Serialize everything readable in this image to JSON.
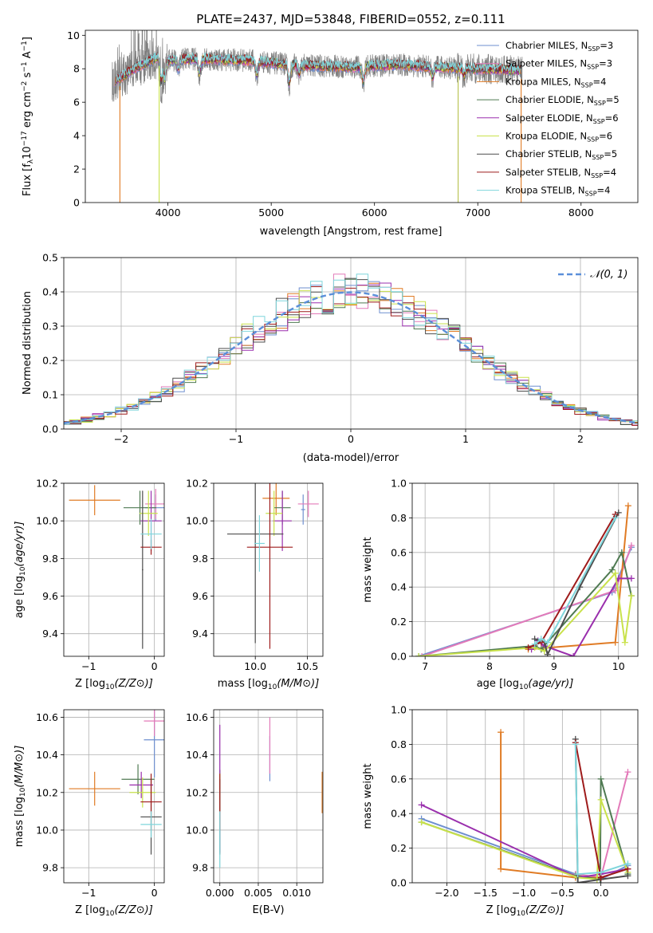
{
  "chart_data": [
    {
      "type": "line",
      "title": "PLATE=2437, MJD=53848, FIBERID=0552, z=0.111",
      "xlabel": "wavelength [Angstrom, rest frame]",
      "ylabel_parts": [
        "Flux [f",
        "λ",
        "10",
        "−17",
        " erg cm",
        "−2",
        " s",
        "−1",
        " A",
        "−1",
        "]"
      ],
      "xlim": [
        3200,
        8550
      ],
      "ylim": [
        0,
        10.3
      ],
      "xticks": [
        4000,
        5000,
        6000,
        7000,
        8000
      ],
      "yticks": [
        0,
        2,
        4,
        6,
        8,
        10
      ],
      "grid": false,
      "legend_position": "upper-right",
      "series": [
        {
          "name": "Chabrier MILES, N_SSP=3",
          "label_main": "Chabrier MILES, N",
          "label_sub": "SSP",
          "label_end": "=3",
          "color": "#6e8fcf"
        },
        {
          "name": "Salpeter MILES, N_SSP=3",
          "label_main": "Salpeter MILES, N",
          "label_sub": "SSP",
          "label_end": "=3",
          "color": "#e37ab9"
        },
        {
          "name": "Kroupa MILES, N_SSP=4",
          "label_main": "Kroupa MILES, N",
          "label_sub": "SSP",
          "label_end": "=4",
          "color": "#e07b24"
        },
        {
          "name": "Chabrier ELODIE, N_SSP=5",
          "label_main": "Chabrier ELODIE, N",
          "label_sub": "SSP",
          "label_end": "=5",
          "color": "#4f7a52"
        },
        {
          "name": "Salpeter ELODIE, N_SSP=6",
          "label_main": "Salpeter ELODIE, N",
          "label_sub": "SSP",
          "label_end": "=6",
          "color": "#9a2fad"
        },
        {
          "name": "Kroupa ELODIE, N_SSP=6",
          "label_main": "Kroupa ELODIE, N",
          "label_sub": "SSP",
          "label_end": "=6",
          "color": "#c9e24b"
        },
        {
          "name": "Chabrier STELIB, N_SSP=5",
          "label_main": "Chabrier STELIB, N",
          "label_sub": "SSP",
          "label_end": "=5",
          "color": "#4d4d4d"
        },
        {
          "name": "Salpeter STELIB, N_SSP=4",
          "label_main": "Salpeter STELIB, N",
          "label_sub": "SSP",
          "label_end": "=4",
          "color": "#9e1b1b"
        },
        {
          "name": "Kroupa STELIB, N_SSP=4",
          "label_main": "Kroupa STELIB, N",
          "label_sub": "SSP",
          "label_end": "=4",
          "color": "#7fd6dc"
        }
      ],
      "observed_spectrum_color": "#808080",
      "wavelength_range": [
        3460,
        7430
      ],
      "continuum_anchor_points": {
        "wavelength": [
          3460,
          3550,
          3700,
          3900,
          4000,
          4200,
          4500,
          4800,
          5000,
          5300,
          5800,
          6200,
          6600,
          7000,
          7400
        ],
        "flux": [
          7.2,
          7.5,
          8.1,
          8.7,
          8.5,
          8.6,
          8.55,
          8.5,
          8.35,
          8.2,
          8.1,
          8.25,
          8.1,
          8.0,
          7.9
        ]
      },
      "absorption_features": {
        "wavelength": [
          3934,
          3969,
          4101,
          4304,
          4861,
          5175,
          5270,
          5893,
          6563,
          6868
        ],
        "depth": [
          1.6,
          1.4,
          0.7,
          1.0,
          0.9,
          1.3,
          0.6,
          1.0,
          0.7,
          0.5
        ]
      },
      "drop_to_zero_wavelengths": [
        3535,
        3915,
        6810,
        7420
      ]
    },
    {
      "type": "histogram",
      "xlabel": "(data-model)/error",
      "ylabel": "Normed distribution",
      "xlim": [
        -2.5,
        2.5
      ],
      "ylim": [
        0,
        0.5
      ],
      "xticks": [
        -2,
        -1,
        0,
        1,
        2
      ],
      "yticks": [
        0,
        0.1,
        0.2,
        0.3,
        0.4,
        0.5
      ],
      "grid": true,
      "legend_position": "upper-right",
      "reference": {
        "label": "𝒩(0, 1)",
        "color": "#5b8fd9",
        "style": "dashed"
      },
      "bin_width": 0.1,
      "bin_centers_range": [
        -2.5,
        2.5
      ]
    },
    {
      "type": "errorbar",
      "xlabel_main": "Z [log",
      "xlabel_sub": "10",
      "xlabel_end": "(Z/Z⊙)]",
      "ylabel_main": "age  [log",
      "ylabel_sub": "10",
      "ylabel_end": "(age/yr)]",
      "xlim": [
        -1.38,
        0.15
      ],
      "ylim": [
        9.28,
        10.2
      ],
      "xticks": [
        -1,
        0
      ],
      "yticks": [
        9.4,
        9.6,
        9.8,
        10.0,
        10.2
      ],
      "grid": true,
      "points": [
        {
          "x": 0.02,
          "xerr": 0.16,
          "y": 10.07,
          "yerr": 0.07
        },
        {
          "x": 0.02,
          "xerr": 0.16,
          "y": 10.09,
          "yerr": 0.08
        },
        {
          "x": -0.91,
          "xerr": 0.39,
          "y": 10.11,
          "yerr": 0.08
        },
        {
          "x": -0.22,
          "xerr": 0.25,
          "y": 10.07,
          "yerr": 0.09
        },
        {
          "x": -0.05,
          "xerr": 0.16,
          "y": 10.0,
          "yerr": 0.16
        },
        {
          "x": -0.09,
          "xerr": 0.14,
          "y": 10.04,
          "yerr": 0.12
        },
        {
          "x": -0.18,
          "xerr": 0.01,
          "y": 9.74,
          "yerr": 0.42
        },
        {
          "x": -0.05,
          "xerr": 0.16,
          "y": 9.86,
          "yerr": 0.04
        },
        {
          "x": -0.05,
          "xerr": 0.16,
          "y": 9.93,
          "yerr": 0.08
        }
      ]
    },
    {
      "type": "errorbar",
      "xlabel_main": "mass [log",
      "xlabel_sub": "10",
      "xlabel_end": "(M/M⊙)]",
      "xlim": [
        9.6,
        10.65
      ],
      "ylim": [
        9.28,
        10.2
      ],
      "xticks": [
        10.0,
        10.5
      ],
      "yticks": [
        9.4,
        9.6,
        9.8,
        10.0,
        10.2
      ],
      "grid": true,
      "points": [
        {
          "x": 10.46,
          "xerr": 0.02,
          "y": 10.06,
          "yerr": 0.08
        },
        {
          "x": 10.51,
          "xerr": 0.1,
          "y": 10.09,
          "yerr": 0.07
        },
        {
          "x": 10.2,
          "xerr": 0.13,
          "y": 10.12,
          "yerr": 0.09
        },
        {
          "x": 10.26,
          "xerr": 0.08,
          "y": 10.07,
          "yerr": 0.09
        },
        {
          "x": 10.26,
          "xerr": 0.09,
          "y": 10.0,
          "yerr": 0.16
        },
        {
          "x": 10.18,
          "xerr": 0.08,
          "y": 10.04,
          "yerr": 0.12
        },
        {
          "x": 10.0,
          "xerr": 0.27,
          "y": 9.93,
          "yerr": 0.58
        },
        {
          "x": 10.14,
          "xerr": 0.22,
          "y": 9.86,
          "yerr": 0.54
        },
        {
          "x": 10.04,
          "xerr": 0.05,
          "y": 9.88,
          "yerr": 0.15
        }
      ]
    },
    {
      "type": "line",
      "xlabel_main": "age  [log",
      "xlabel_sub": "10",
      "xlabel_end": "(age/yr)]",
      "ylabel": "mass weight",
      "xlim": [
        6.8,
        10.3
      ],
      "ylim": [
        0,
        1.0
      ],
      "xticks": [
        7,
        8,
        9,
        10
      ],
      "yticks": [
        0.0,
        0.2,
        0.4,
        0.6,
        0.8,
        1.0
      ],
      "grid": true,
      "series": [
        {
          "x": [
            6.9,
            9.9,
            10.2
          ],
          "y": [
            0.0,
            0.37,
            0.63
          ]
        },
        {
          "x": [
            6.95,
            9.95,
            10.2
          ],
          "y": [
            0.0,
            0.38,
            0.64
          ]
        },
        {
          "x": [
            8.6,
            9.95,
            10.15
          ],
          "y": [
            0.04,
            0.08,
            0.87
          ]
        },
        {
          "x": [
            6.9,
            8.7,
            8.8,
            9.9,
            10.05,
            10.2
          ],
          "y": [
            0.0,
            0.06,
            0.04,
            0.5,
            0.6,
            0.35
          ]
        },
        {
          "x": [
            8.65,
            8.75,
            8.85,
            9.3,
            10.0,
            10.2
          ],
          "y": [
            0.04,
            0.09,
            0.06,
            0.0,
            0.45,
            0.45
          ]
        },
        {
          "x": [
            6.9,
            8.7,
            8.85,
            9.95,
            10.1,
            10.2
          ],
          "y": [
            0.0,
            0.05,
            0.03,
            0.48,
            0.08,
            0.35
          ]
        },
        {
          "x": [
            8.7,
            8.85,
            8.9,
            9.4,
            10.0
          ],
          "y": [
            0.1,
            0.08,
            0.01,
            0.4,
            0.83
          ]
        },
        {
          "x": [
            8.6,
            8.8,
            9.95
          ],
          "y": [
            0.05,
            0.08,
            0.82
          ]
        },
        {
          "x": [
            8.7,
            8.8,
            8.9,
            9.95
          ],
          "y": [
            0.07,
            0.1,
            0.08,
            0.8
          ]
        }
      ]
    },
    {
      "type": "errorbar",
      "xlabel_main": "Z [log",
      "xlabel_sub": "10",
      "xlabel_end": "(Z/Z⊙)]",
      "ylabel_main": "mass [log",
      "ylabel_sub": "10",
      "ylabel_end": "(M/M⊙)]",
      "xlim": [
        -1.38,
        0.15
      ],
      "ylim": [
        9.72,
        10.64
      ],
      "xticks": [
        -1,
        0
      ],
      "yticks": [
        9.8,
        10.0,
        10.2,
        10.4,
        10.6
      ],
      "grid": true,
      "points": [
        {
          "x": 0.0,
          "xerr": 0.16,
          "y": 10.48,
          "yerr": 0.2
        },
        {
          "x": 0.0,
          "xerr": 0.16,
          "y": 10.58,
          "yerr": 0.08
        },
        {
          "x": -0.91,
          "xerr": 0.39,
          "y": 10.22,
          "yerr": 0.09
        },
        {
          "x": -0.25,
          "xerr": 0.25,
          "y": 10.27,
          "yerr": 0.08
        },
        {
          "x": -0.2,
          "xerr": 0.18,
          "y": 10.24,
          "yerr": 0.07
        },
        {
          "x": -0.18,
          "xerr": 0.2,
          "y": 10.2,
          "yerr": 0.08
        },
        {
          "x": -0.05,
          "xerr": 0.16,
          "y": 10.07,
          "yerr": 0.2
        },
        {
          "x": -0.05,
          "xerr": 0.16,
          "y": 10.15,
          "yerr": 0.15
        },
        {
          "x": -0.05,
          "xerr": 0.16,
          "y": 10.03,
          "yerr": 0.07
        }
      ]
    },
    {
      "type": "errorbar",
      "xlabel": "E(B-V)",
      "xlim": [
        -0.0008,
        0.0134
      ],
      "ylim": [
        9.72,
        10.64
      ],
      "xticks": [
        0.0,
        0.005,
        0.01
      ],
      "xtick_labels": [
        "0.000",
        "0.005",
        "0.010"
      ],
      "yticks": [
        9.8,
        10.0,
        10.2,
        10.4,
        10.6
      ],
      "grid": true,
      "points": [
        {
          "x": 0.0065,
          "xerr": 0.0,
          "y": 10.38,
          "yerr": 0.12
        },
        {
          "x": 0.0065,
          "xerr": 0.0,
          "y": 10.45,
          "yerr": 0.15
        },
        {
          "x": 0.0133,
          "xerr": 0.0,
          "y": 10.2,
          "yerr": 0.11
        },
        {
          "x": 0.0,
          "xerr": 0.0,
          "y": 10.27,
          "yerr": 0.05
        },
        {
          "x": 0.0,
          "xerr": 0.0,
          "y": 10.22,
          "yerr": 0.34
        },
        {
          "x": 0.0,
          "xerr": 0.0,
          "y": 10.2,
          "yerr": 0.1
        },
        {
          "x": 0.0,
          "xerr": 0.0,
          "y": 10.07,
          "yerr": 0.2
        },
        {
          "x": 0.0,
          "xerr": 0.0,
          "y": 10.15,
          "yerr": 0.15
        },
        {
          "x": 0.0,
          "xerr": 0.0,
          "y": 9.95,
          "yerr": 0.15
        }
      ]
    },
    {
      "type": "line",
      "xlabel_main": "Z [log",
      "xlabel_sub": "10",
      "xlabel_end": "(Z/Z⊙)]",
      "ylabel": "mass weight",
      "xlim": [
        -2.45,
        0.48
      ],
      "ylim": [
        0,
        1.0
      ],
      "xticks": [
        -2.0,
        -1.5,
        -1.0,
        -0.5,
        0.0
      ],
      "yticks": [
        0.0,
        0.2,
        0.4,
        0.6,
        0.8,
        1.0
      ],
      "grid": true,
      "series": [
        {
          "x": [
            -2.33,
            -0.33,
            0.0,
            0.35
          ],
          "y": [
            0.37,
            0.05,
            0.02,
            0.1
          ]
        },
        {
          "x": [
            -0.33,
            0.0,
            0.35
          ],
          "y": [
            0.05,
            0.03,
            0.64
          ]
        },
        {
          "x": [
            -1.3,
            -1.3,
            -0.33,
            0.0
          ],
          "y": [
            0.87,
            0.08,
            0.03,
            0.03
          ]
        },
        {
          "x": [
            -2.33,
            -0.33,
            -0.01,
            0.0,
            0.35
          ],
          "y": [
            0.35,
            0.04,
            0.02,
            0.6,
            0.05
          ]
        },
        {
          "x": [
            -2.33,
            -0.3,
            0.0,
            0.35
          ],
          "y": [
            0.45,
            0.03,
            0.05,
            0.08
          ]
        },
        {
          "x": [
            -2.33,
            -0.3,
            -0.05,
            0.0,
            0.35
          ],
          "y": [
            0.35,
            0.03,
            0.02,
            0.48,
            0.06
          ]
        },
        {
          "x": [
            -0.33,
            -0.3,
            0.0,
            0.35
          ],
          "y": [
            0.83,
            0.0,
            0.02,
            0.04
          ]
        },
        {
          "x": [
            -0.33,
            0.0,
            0.35
          ],
          "y": [
            0.81,
            0.03,
            0.08
          ]
        },
        {
          "x": [
            -0.33,
            -0.3,
            0.0,
            0.35
          ],
          "y": [
            0.8,
            0.05,
            0.06,
            0.11
          ]
        }
      ]
    }
  ]
}
